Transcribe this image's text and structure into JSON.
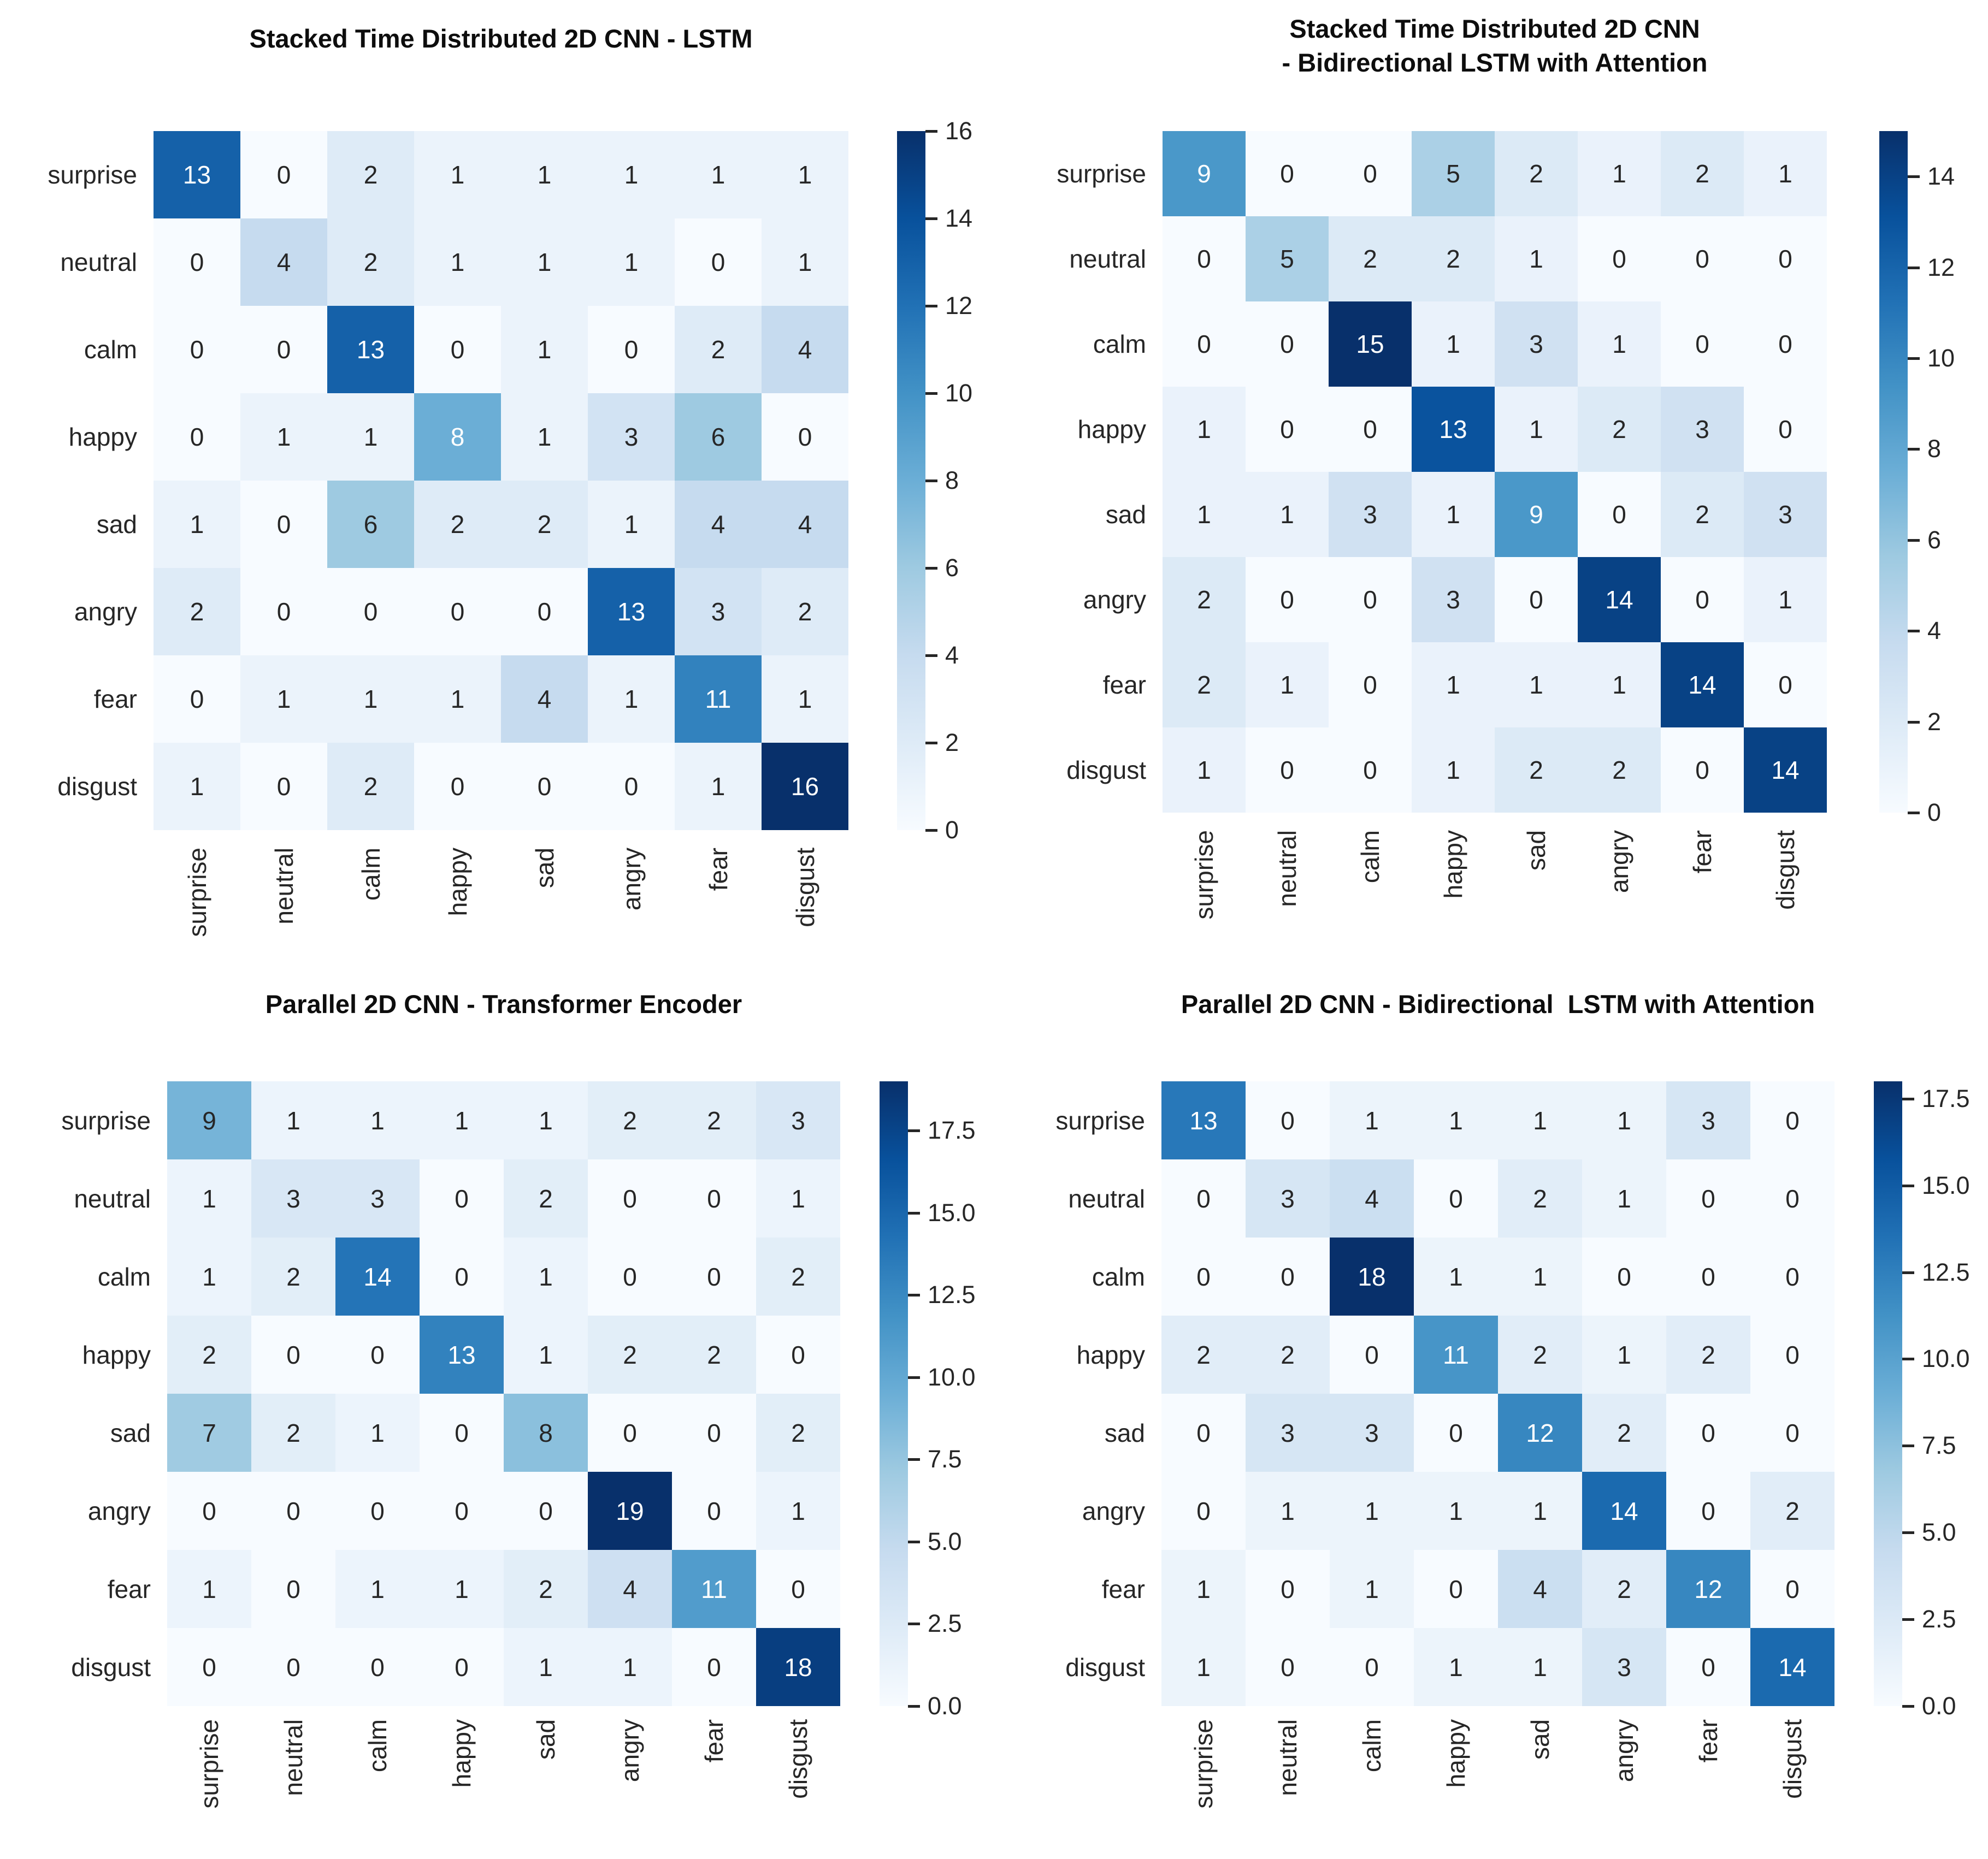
{
  "page": {
    "background": "#ffffff"
  },
  "colors": {
    "title_text": "#0d0d0d",
    "tick_label_text": "#262626",
    "cell_text_dark": "#262626",
    "cell_text_light": "#ffffff",
    "colormap_name": "Blues",
    "colormap_stops": [
      "#f7fbff",
      "#deebf7",
      "#c6dbef",
      "#9ecae1",
      "#6baed6",
      "#4292c6",
      "#2171b5",
      "#08519c",
      "#08306b"
    ]
  },
  "chart_data": [
    {
      "type": "heatmap",
      "title": "Stacked Time Distributed 2D CNN - LSTM",
      "categories": [
        "surprise",
        "neutral",
        "calm",
        "happy",
        "sad",
        "angry",
        "fear",
        "disgust"
      ],
      "xlabel": "",
      "ylabel": "",
      "vmin": 0,
      "vmax": 16,
      "grid": false,
      "legend_position": "right-colorbar",
      "matrix": [
        [
          13,
          0,
          2,
          1,
          1,
          1,
          1,
          1
        ],
        [
          0,
          4,
          2,
          1,
          1,
          1,
          0,
          1
        ],
        [
          0,
          0,
          13,
          0,
          1,
          0,
          2,
          4
        ],
        [
          0,
          1,
          1,
          8,
          1,
          3,
          6,
          0
        ],
        [
          1,
          0,
          6,
          2,
          2,
          1,
          4,
          4
        ],
        [
          2,
          0,
          0,
          0,
          0,
          13,
          3,
          2
        ],
        [
          0,
          1,
          1,
          1,
          4,
          1,
          11,
          1
        ],
        [
          1,
          0,
          2,
          0,
          0,
          0,
          1,
          16
        ]
      ],
      "colorbar": {
        "ticks": [
          0,
          2,
          4,
          6,
          8,
          10,
          12,
          14,
          16
        ],
        "tick_labels": [
          "0",
          "2",
          "4",
          "6",
          "8",
          "10",
          "12",
          "14",
          "16"
        ]
      }
    },
    {
      "type": "heatmap",
      "title": "Stacked Time Distributed 2D CNN\n- Bidirectional LSTM with Attention",
      "categories": [
        "surprise",
        "neutral",
        "calm",
        "happy",
        "sad",
        "angry",
        "fear",
        "disgust"
      ],
      "xlabel": "",
      "ylabel": "",
      "vmin": 0,
      "vmax": 15,
      "grid": false,
      "legend_position": "right-colorbar",
      "matrix": [
        [
          9,
          0,
          0,
          5,
          2,
          1,
          2,
          1
        ],
        [
          0,
          5,
          2,
          2,
          1,
          0,
          0,
          0
        ],
        [
          0,
          0,
          15,
          1,
          3,
          1,
          0,
          0
        ],
        [
          1,
          0,
          0,
          13,
          1,
          2,
          3,
          0
        ],
        [
          1,
          1,
          3,
          1,
          9,
          0,
          2,
          3
        ],
        [
          2,
          0,
          0,
          3,
          0,
          14,
          0,
          1
        ],
        [
          2,
          1,
          0,
          1,
          1,
          1,
          14,
          0
        ],
        [
          1,
          0,
          0,
          1,
          2,
          2,
          0,
          14
        ]
      ],
      "colorbar": {
        "ticks": [
          0,
          2,
          4,
          6,
          8,
          10,
          12,
          14
        ],
        "tick_labels": [
          "0",
          "2",
          "4",
          "6",
          "8",
          "10",
          "12",
          "14"
        ]
      }
    },
    {
      "type": "heatmap",
      "title": "Parallel 2D CNN - Transformer Encoder",
      "categories": [
        "surprise",
        "neutral",
        "calm",
        "happy",
        "sad",
        "angry",
        "fear",
        "disgust"
      ],
      "xlabel": "",
      "ylabel": "",
      "vmin": 0,
      "vmax": 19,
      "grid": false,
      "legend_position": "right-colorbar",
      "matrix": [
        [
          9,
          1,
          1,
          1,
          1,
          2,
          2,
          3
        ],
        [
          1,
          3,
          3,
          0,
          2,
          0,
          0,
          1
        ],
        [
          1,
          2,
          14,
          0,
          1,
          0,
          0,
          2
        ],
        [
          2,
          0,
          0,
          13,
          1,
          2,
          2,
          0
        ],
        [
          7,
          2,
          1,
          0,
          8,
          0,
          0,
          2
        ],
        [
          0,
          0,
          0,
          0,
          0,
          19,
          0,
          1
        ],
        [
          1,
          0,
          1,
          1,
          2,
          4,
          11,
          0
        ],
        [
          0,
          0,
          0,
          0,
          1,
          1,
          0,
          18
        ]
      ],
      "colorbar": {
        "ticks": [
          0,
          2.5,
          5,
          7.5,
          10,
          12.5,
          15,
          17.5
        ],
        "tick_labels": [
          "0.0",
          "2.5",
          "5.0",
          "7.5",
          "10.0",
          "12.5",
          "15.0",
          "17.5"
        ]
      }
    },
    {
      "type": "heatmap",
      "title": "Parallel 2D CNN - Bidirectional  LSTM with Attention",
      "categories": [
        "surprise",
        "neutral",
        "calm",
        "happy",
        "sad",
        "angry",
        "fear",
        "disgust"
      ],
      "xlabel": "",
      "ylabel": "",
      "vmin": 0,
      "vmax": 18,
      "grid": false,
      "legend_position": "right-colorbar",
      "matrix": [
        [
          13,
          0,
          1,
          1,
          1,
          1,
          3,
          0
        ],
        [
          0,
          3,
          4,
          0,
          2,
          1,
          0,
          0
        ],
        [
          0,
          0,
          18,
          1,
          1,
          0,
          0,
          0
        ],
        [
          2,
          2,
          0,
          11,
          2,
          1,
          2,
          0
        ],
        [
          0,
          3,
          3,
          0,
          12,
          2,
          0,
          0
        ],
        [
          0,
          1,
          1,
          1,
          1,
          14,
          0,
          2
        ],
        [
          1,
          0,
          1,
          0,
          4,
          2,
          12,
          0
        ],
        [
          1,
          0,
          0,
          1,
          1,
          3,
          0,
          14
        ]
      ],
      "colorbar": {
        "ticks": [
          0,
          2.5,
          5,
          7.5,
          10,
          12.5,
          15,
          17.5
        ],
        "tick_labels": [
          "0.0",
          "2.5",
          "5.0",
          "7.5",
          "10.0",
          "12.5",
          "15.0",
          "17.5"
        ]
      }
    }
  ]
}
